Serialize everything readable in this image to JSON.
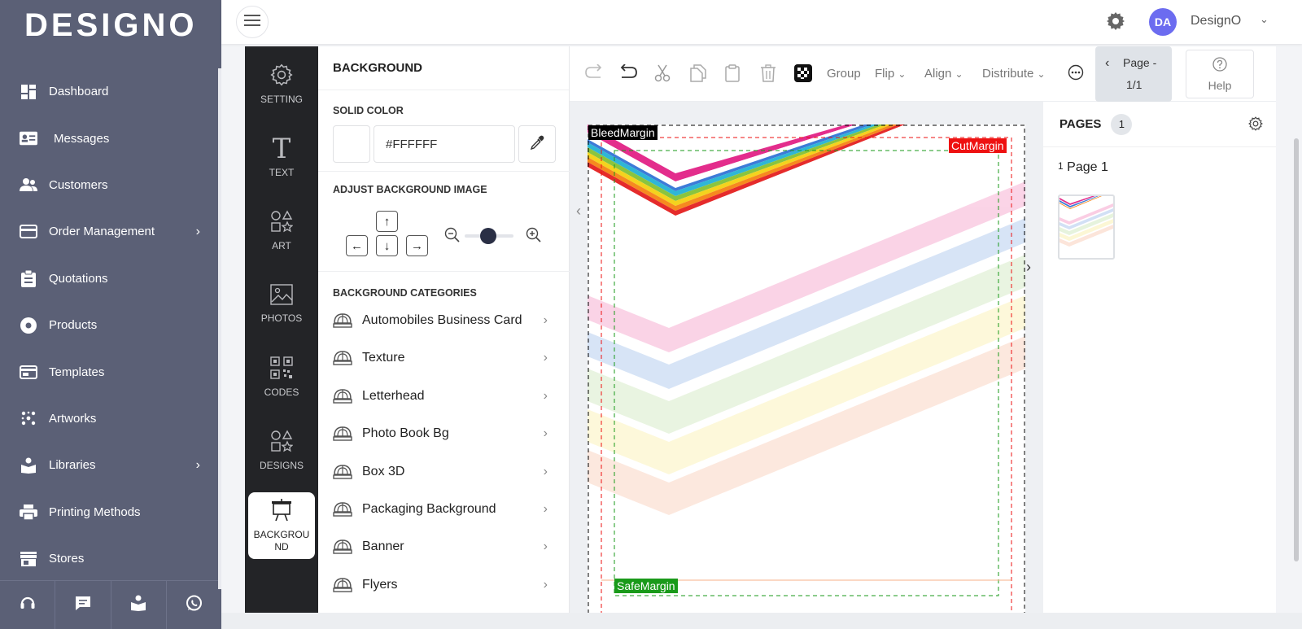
{
  "brand": {
    "logo": "DESIGNO"
  },
  "nav": {
    "items": [
      {
        "label": "Dashboard",
        "icon": "dashboard-icon",
        "has_submenu": false
      },
      {
        "label": "Messages",
        "icon": "messages-icon",
        "has_submenu": false
      },
      {
        "label": "Customers",
        "icon": "customers-icon",
        "has_submenu": false
      },
      {
        "label": "Order Management",
        "icon": "order-icon",
        "has_submenu": true
      },
      {
        "label": "Quotations",
        "icon": "quotations-icon",
        "has_submenu": false
      },
      {
        "label": "Products",
        "icon": "products-icon",
        "has_submenu": false
      },
      {
        "label": "Templates",
        "icon": "templates-icon",
        "has_submenu": false
      },
      {
        "label": "Artworks",
        "icon": "artworks-icon",
        "has_submenu": false
      },
      {
        "label": "Libraries",
        "icon": "libraries-icon",
        "has_submenu": true
      },
      {
        "label": "Printing Methods",
        "icon": "printer-icon",
        "has_submenu": false
      },
      {
        "label": "Stores",
        "icon": "store-icon",
        "has_submenu": false
      }
    ],
    "footer_icons": [
      "headset-icon",
      "chat-icon",
      "book-icon",
      "whatsapp-icon"
    ]
  },
  "topbar": {
    "avatar_initials": "DA",
    "username": "DesignO"
  },
  "rail": {
    "items": [
      {
        "label": "SETTING",
        "icon": "gear-icon"
      },
      {
        "label": "TEXT",
        "icon": "text-icon"
      },
      {
        "label": "ART",
        "icon": "shapes-icon"
      },
      {
        "label": "PHOTOS",
        "icon": "image-icon"
      },
      {
        "label": "CODES",
        "icon": "qr-code-icon"
      },
      {
        "label": "DESIGNS",
        "icon": "shapes-icon"
      },
      {
        "label": "BACKGROU ND",
        "icon": "easel-icon",
        "active": true
      }
    ]
  },
  "panel": {
    "title": "BACKGROUND",
    "solid_color_label": "SOLID COLOR",
    "solid_color_value": "#FFFFFF",
    "adjust_label": "ADJUST BACKGROUND IMAGE",
    "arrows": {
      "up": "↑",
      "left": "←",
      "down": "↓",
      "right": "→"
    },
    "zoom_level": 0.5,
    "categories_label": "BACKGROUND CATEGORIES",
    "categories": [
      "Automobiles Business Card",
      "Texture",
      "Letterhead",
      "Photo Book Bg",
      "Box 3D",
      "Packaging Background",
      "Banner",
      "Flyers"
    ]
  },
  "toolbar": {
    "group": "Group",
    "flip": "Flip",
    "align": "Align",
    "distribute": "Distribute",
    "page_label": "Page -",
    "page_value": "1/1",
    "help": "Help"
  },
  "canvas": {
    "bleed_label": "BleedMargin",
    "cut_label": "CutMargin",
    "safe_label": "SafeMargin",
    "colors": {
      "bleed": "#000000",
      "cut": "#ee1111",
      "safe": "#1a9a1a"
    }
  },
  "pages": {
    "title": "PAGES",
    "count": "1",
    "thumb_index": "1",
    "thumb_label": "Page 1"
  }
}
